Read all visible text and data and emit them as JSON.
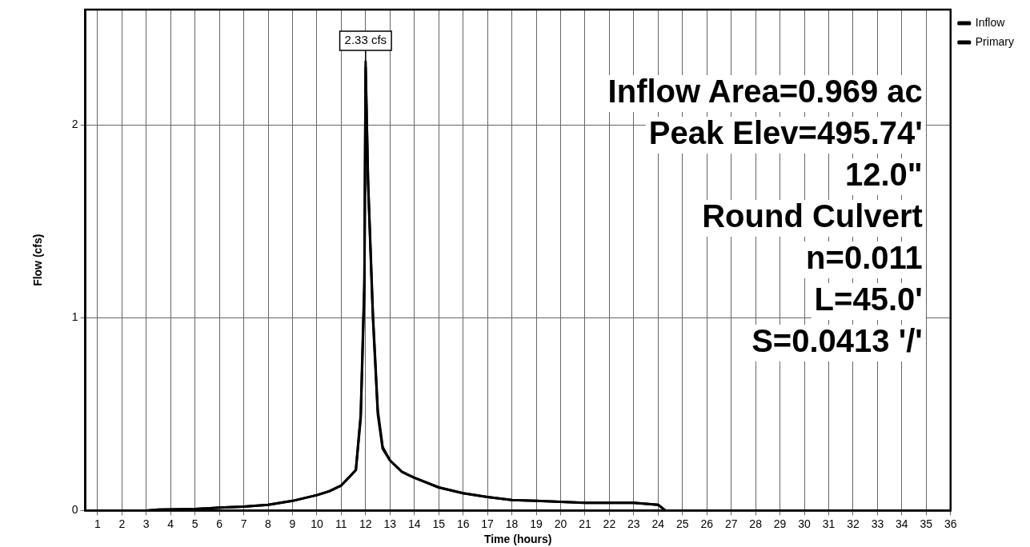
{
  "chart_data": {
    "type": "line",
    "xlabel": "Time (hours)",
    "ylabel": "Flow (cfs)",
    "xlim": [
      0.5,
      36
    ],
    "xticks": [
      1,
      2,
      3,
      4,
      5,
      6,
      7,
      8,
      9,
      10,
      11,
      12,
      13,
      14,
      15,
      16,
      17,
      18,
      19,
      20,
      21,
      22,
      23,
      24,
      25,
      26,
      27,
      28,
      29,
      30,
      31,
      32,
      33,
      34,
      35,
      36
    ],
    "ylim": [
      0,
      2.6
    ],
    "yticks": [
      0,
      1,
      2
    ],
    "grid": true,
    "legend": "top right",
    "marker": "none",
    "line_style": "solid",
    "series": [
      {
        "name": "Inflow",
        "color": "#000000",
        "x": [
          0.5,
          3,
          3.5,
          5,
          6,
          7,
          8,
          9,
          10,
          10.5,
          11,
          11.3,
          11.6,
          11.8,
          11.95,
          12.0,
          12.1,
          12.3,
          12.5,
          12.7,
          13,
          13.5,
          14,
          15,
          16,
          17,
          18,
          19,
          20,
          21,
          22,
          23,
          24,
          24.3,
          25,
          30,
          36
        ],
        "values": [
          0,
          0,
          0.005,
          0.008,
          0.015,
          0.02,
          0.03,
          0.05,
          0.08,
          0.1,
          0.13,
          0.17,
          0.21,
          0.5,
          1.2,
          2.33,
          1.7,
          1.0,
          0.5,
          0.32,
          0.26,
          0.2,
          0.17,
          0.12,
          0.09,
          0.07,
          0.055,
          0.05,
          0.045,
          0.04,
          0.04,
          0.04,
          0.03,
          0,
          0,
          0,
          0
        ]
      },
      {
        "name": "Primary",
        "color": "#000000",
        "x": [
          0.5,
          3,
          3.5,
          5,
          6,
          7,
          8,
          9,
          10,
          10.5,
          11,
          11.3,
          11.6,
          11.8,
          11.95,
          12.0,
          12.1,
          12.3,
          12.5,
          12.7,
          13,
          13.5,
          14,
          15,
          16,
          17,
          18,
          19,
          20,
          21,
          22,
          23,
          24,
          24.3,
          25,
          30,
          36
        ],
        "values": [
          0,
          0,
          0.005,
          0.008,
          0.015,
          0.02,
          0.03,
          0.05,
          0.08,
          0.1,
          0.13,
          0.17,
          0.21,
          0.48,
          1.15,
          2.3,
          1.72,
          1.02,
          0.52,
          0.33,
          0.26,
          0.2,
          0.17,
          0.12,
          0.09,
          0.07,
          0.055,
          0.05,
          0.045,
          0.04,
          0.04,
          0.04,
          0.03,
          0,
          0,
          0,
          0
        ]
      }
    ],
    "annotations": [
      {
        "text": "2.33 cfs",
        "x": 12,
        "y": 2.33
      },
      "Inflow Area=0.969 ac",
      "Peak Elev=495.74'",
      "12.0\"",
      "Round Culvert",
      "n=0.011",
      "L=45.0'",
      "S=0.0413 '/'"
    ]
  }
}
